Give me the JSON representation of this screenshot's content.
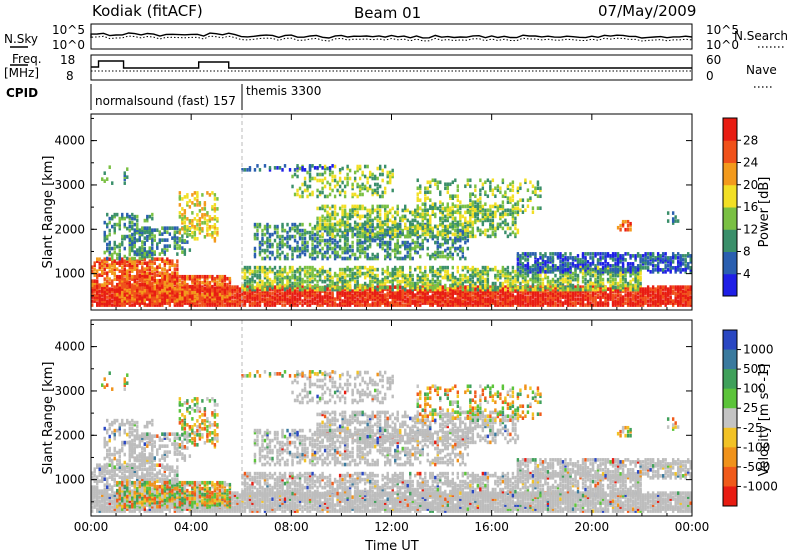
{
  "header": {
    "station": "Kodiak (fitACF)",
    "beam": "Beam 01",
    "date": "07/May/2009"
  },
  "top_panels": {
    "nsky_label": "N.Sky",
    "nsearch_label": "N.Search",
    "nsky_ticks": [
      "10^5",
      "10^0"
    ],
    "nsearch_ticks": [
      "10^5",
      "10^0"
    ],
    "freq_label_1": "Freq.",
    "freq_label_2": "[MHz]",
    "freq_ticks": [
      "18",
      "8"
    ],
    "nave_label": "Nave",
    "nave_ticks": [
      "60",
      "0"
    ],
    "cpid_label": "CPID",
    "cpid_1": "normalsound (fast) 157",
    "cpid_2": "themis 3300"
  },
  "chart_data": [
    {
      "type": "heatmap",
      "name": "power",
      "ylabel": "Slant Range [km]",
      "x_ticks": [
        "00:00",
        "04:00",
        "08:00",
        "12:00",
        "16:00",
        "20:00",
        "00:00"
      ],
      "y_ticks": [
        "1000",
        "2000",
        "3000",
        "4000"
      ],
      "ylim": [
        180,
        4600
      ],
      "colorbar": {
        "label": "Power [dB]",
        "ticks": [
          "4",
          "8",
          "12",
          "16",
          "20",
          "24",
          "28"
        ],
        "colors": [
          "#1f1fe6",
          "#2a5fb0",
          "#3a8f6a",
          "#7ac043",
          "#f2df25",
          "#f39a1c",
          "#f0511a",
          "#e81c12"
        ]
      }
    },
    {
      "type": "heatmap",
      "name": "velocity",
      "ylabel": "Slant Range [km]",
      "xlabel": "Time UT",
      "x_ticks": [
        "00:00",
        "04:00",
        "08:00",
        "12:00",
        "16:00",
        "20:00",
        "00:00"
      ],
      "y_ticks": [
        "1000",
        "2000",
        "3000",
        "4000"
      ],
      "ylim": [
        180,
        4600
      ],
      "colorbar": {
        "label": "Velocity [m s^-1]",
        "ticks": [
          "1000",
          "500",
          "100",
          "25",
          "-25",
          "-100",
          "-500",
          "-1000"
        ],
        "colors": [
          "#2a47c2",
          "#3a7a9e",
          "#3fa05a",
          "#5cc43a",
          "#c4c4c4",
          "#f2c225",
          "#f0921a",
          "#f05a1a",
          "#e81c12"
        ],
        "ground_scatter_color": "#bdbdbd"
      }
    }
  ]
}
